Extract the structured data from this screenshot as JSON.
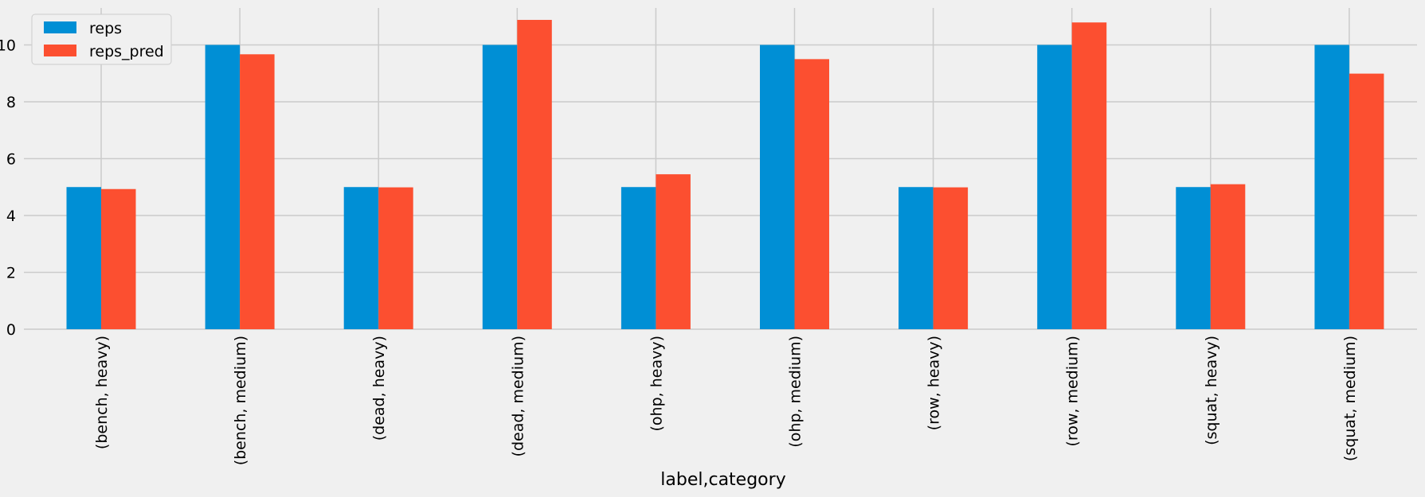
{
  "chart_data": {
    "type": "bar",
    "title": "",
    "xlabel": "label,category",
    "ylabel": "",
    "categories": [
      "(bench, heavy)",
      "(bench, medium)",
      "(dead, heavy)",
      "(dead, medium)",
      "(ohp, heavy)",
      "(ohp, medium)",
      "(row, heavy)",
      "(row, medium)",
      "(squat, heavy)",
      "(squat, medium)"
    ],
    "series": [
      {
        "name": "reps",
        "color": "#008fd5",
        "values": [
          5,
          10,
          5,
          10,
          5,
          10,
          5,
          10,
          5,
          10
        ]
      },
      {
        "name": "reps_pred",
        "color": "#fc4f30",
        "values": [
          4.93,
          9.67,
          4.99,
          10.88,
          5.45,
          9.5,
          4.99,
          10.79,
          5.1,
          8.99
        ]
      }
    ],
    "ylim": [
      0,
      11.3
    ],
    "yticks": [
      0,
      2,
      4,
      6,
      8,
      10
    ],
    "ytick_labels": [
      "0",
      "2",
      "4",
      "6",
      "8",
      "10"
    ],
    "grid": true,
    "legend_position": "top-left",
    "x_tick_rotation": "vertical",
    "background_color": "#f0f0f0",
    "grid_color": "#cbcbcb"
  }
}
